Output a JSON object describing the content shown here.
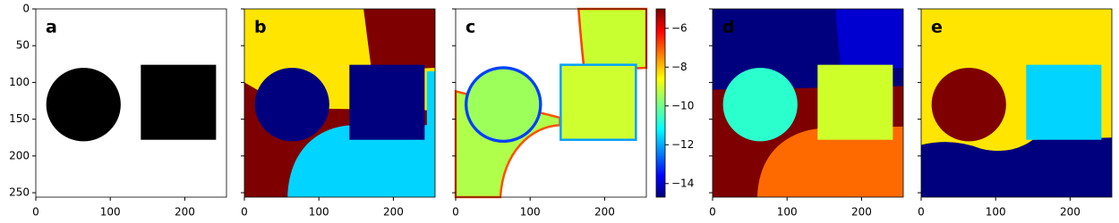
{
  "panels": [
    {
      "label": "a"
    },
    {
      "label": "b"
    },
    {
      "label": "c"
    },
    {
      "label": "d"
    },
    {
      "label": "e"
    }
  ],
  "axes": {
    "xlim": [
      0,
      256
    ],
    "ylim": [
      256,
      0
    ],
    "xticks": [
      0,
      100,
      200
    ],
    "yticks": [
      0,
      50,
      100,
      150,
      200,
      250
    ]
  },
  "colorbar": {
    "lim": [
      -14.7,
      -5
    ],
    "ticks": [
      {
        "value": -6,
        "label": "−6"
      },
      {
        "value": -8,
        "label": "−8"
      },
      {
        "value": -10,
        "label": "−10"
      },
      {
        "value": -12,
        "label": "−12"
      },
      {
        "value": -14,
        "label": "−14"
      }
    ]
  }
}
